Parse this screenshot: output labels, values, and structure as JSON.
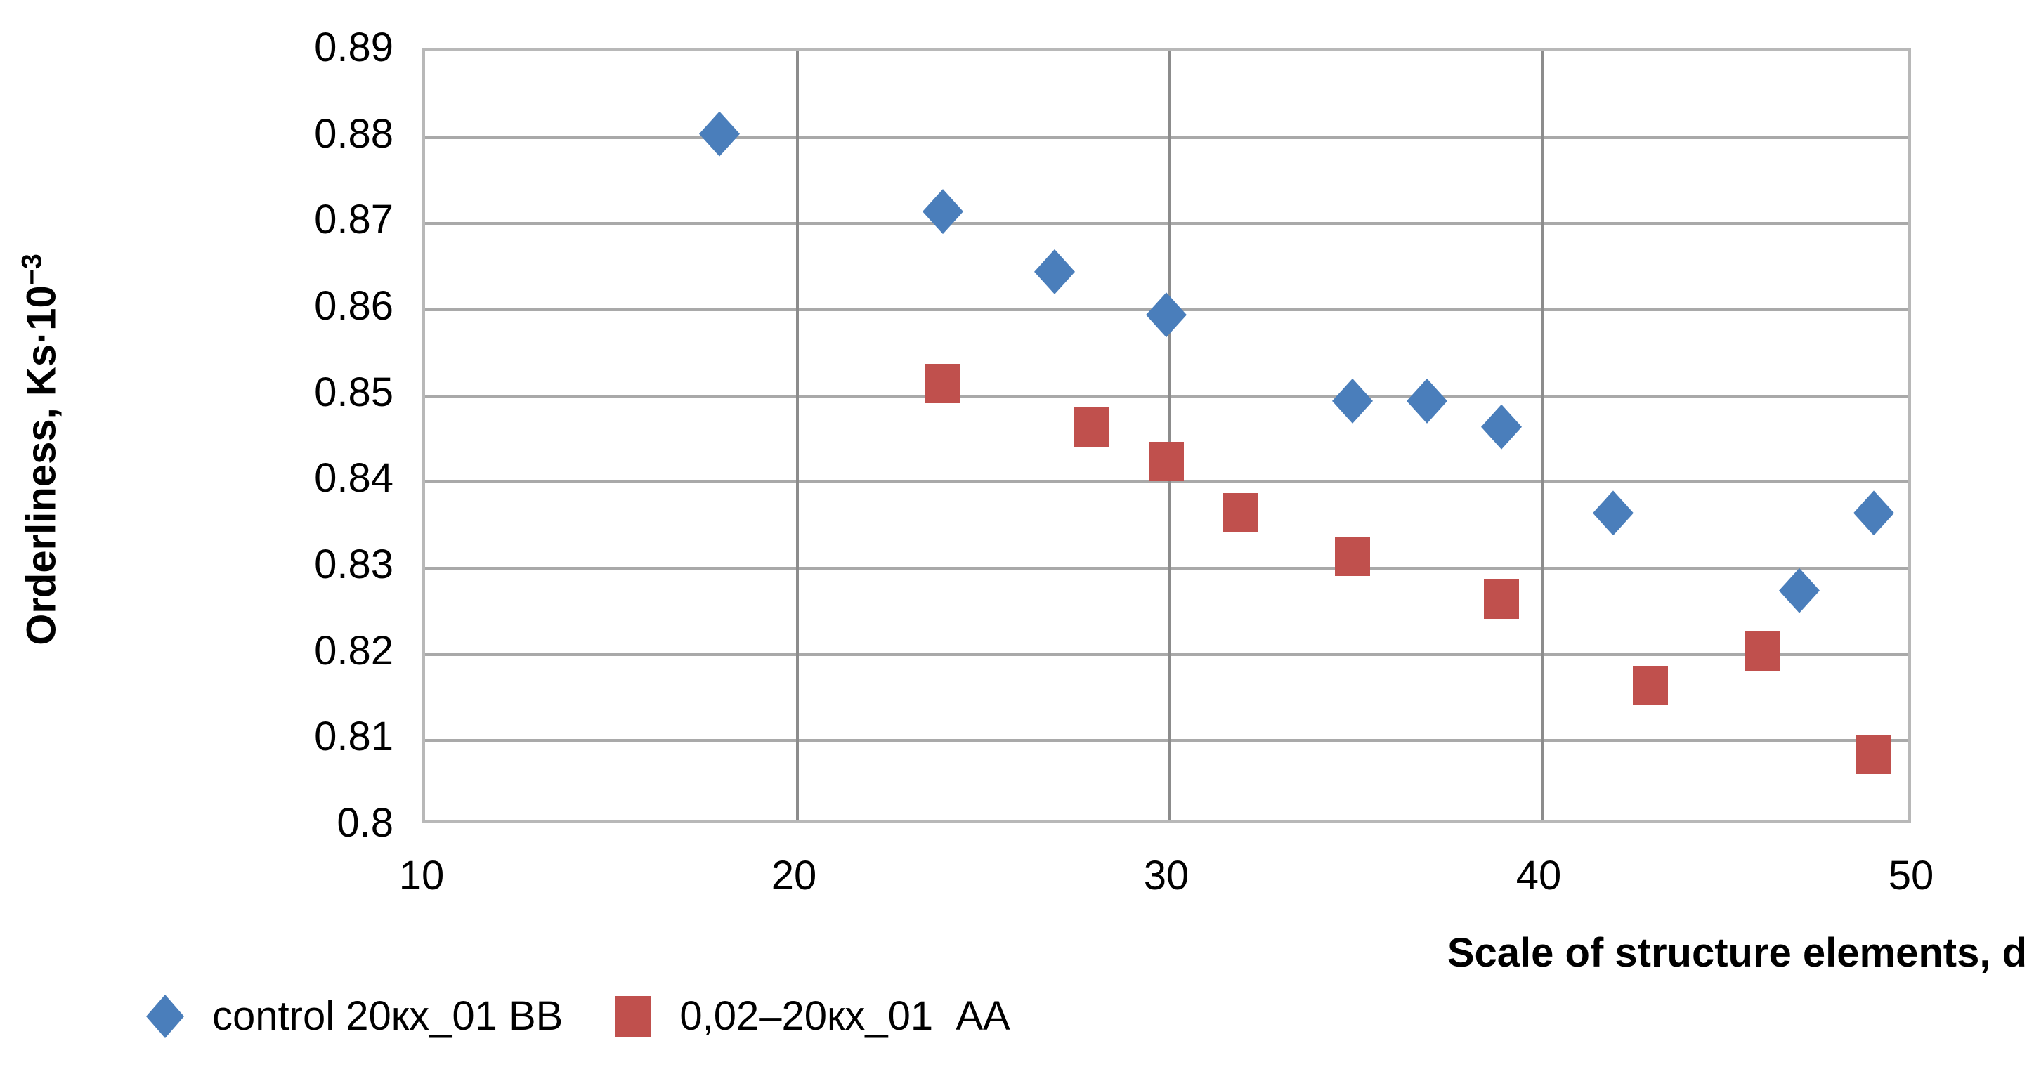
{
  "chart_data": {
    "type": "scatter",
    "title": "",
    "xlabel": "Scale of structure elements, d",
    "ylabel_prefix": "Orderliness, Ks·10",
    "ylabel_superscript": "−3",
    "xlim": [
      10,
      50
    ],
    "ylim": [
      0.8,
      0.89
    ],
    "xticks": [
      10,
      20,
      30,
      40,
      50
    ],
    "xtick_labels": [
      "10",
      "20",
      "30",
      "40",
      "50"
    ],
    "yticks": [
      0.89,
      0.88,
      0.87,
      0.86,
      0.85,
      0.84,
      0.83,
      0.82,
      0.81,
      0.8
    ],
    "ytick_labels": [
      "0.89",
      "0.88",
      "0.87",
      "0.86",
      "0.85",
      "0.84",
      "0.83",
      "0.82",
      "0.81",
      "0.8"
    ],
    "grid": true,
    "legend_position": "bottom-left",
    "colors": {
      "series_blue": "#4a7ebb",
      "series_red": "#c0504d",
      "gridline_horizontal": "#a9a9a9",
      "gridline_vertical": "#8c8c8c",
      "plot_border": "#b8b8b8"
    },
    "series": [
      {
        "name": "control 20кх_01 BB",
        "marker": "diamond",
        "color": "#4a7ebb",
        "points": [
          [
            18,
            0.88
          ],
          [
            24,
            0.871
          ],
          [
            27,
            0.864
          ],
          [
            30,
            0.859
          ],
          [
            35,
            0.849
          ],
          [
            37,
            0.849
          ],
          [
            39,
            0.846
          ],
          [
            42,
            0.836
          ],
          [
            47,
            0.827
          ],
          [
            49,
            0.836
          ]
        ]
      },
      {
        "name": "0,02–20кх_01  AA",
        "marker": "square",
        "color": "#c0504d",
        "points": [
          [
            24,
            0.851
          ],
          [
            28,
            0.846
          ],
          [
            30,
            0.842
          ],
          [
            32,
            0.836
          ],
          [
            35,
            0.831
          ],
          [
            39,
            0.826
          ],
          [
            43,
            0.816
          ],
          [
            46,
            0.82
          ],
          [
            49,
            0.808
          ]
        ]
      }
    ]
  }
}
